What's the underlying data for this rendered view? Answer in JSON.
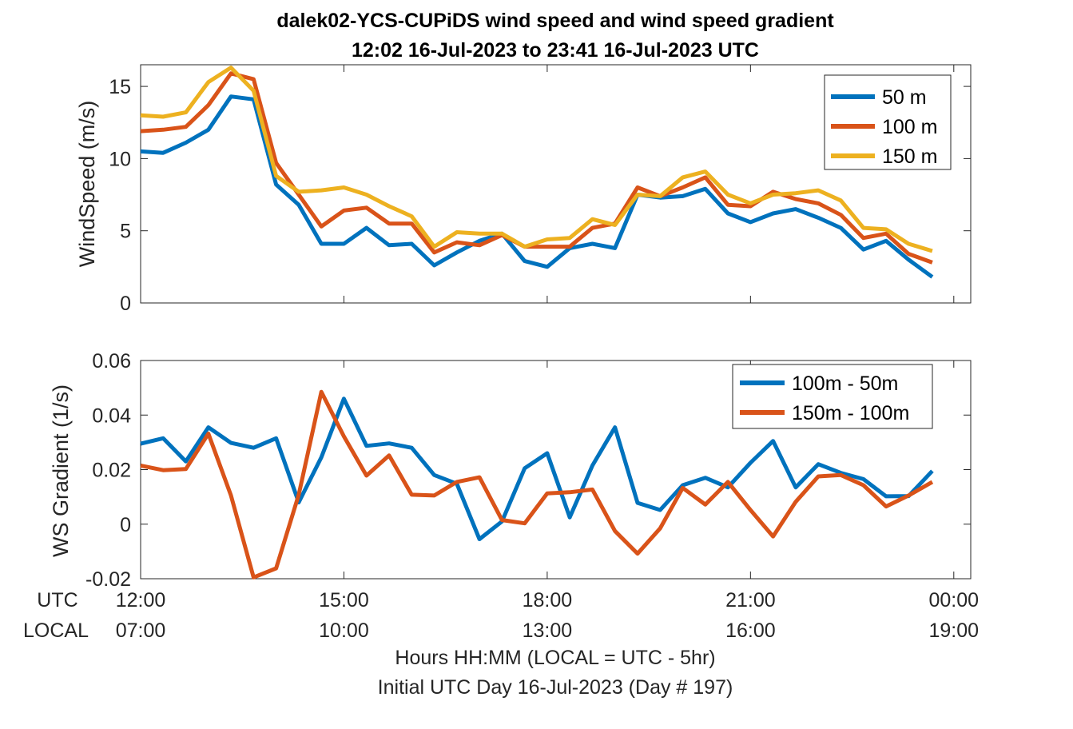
{
  "figure": {
    "title_line1": "dalek02-YCS-CUPiDS  wind speed and wind speed gradient",
    "title_line2": "12:02 16-Jul-2023 to 23:41 16-Jul-2023  UTC",
    "xlabel_line1": "Hours HH:MM  (LOCAL = UTC - 5hr)",
    "xlabel_line2": "Initial UTC Day 16-Jul-2023 (Day # 197)",
    "row_utc": "UTC",
    "row_local": "LOCAL",
    "utc_ticks": [
      "12:00",
      "15:00",
      "18:00",
      "21:00",
      "00:00"
    ],
    "local_ticks": [
      "07:00",
      "10:00",
      "13:00",
      "16:00",
      "19:00"
    ],
    "colors": {
      "blue": "#0072BD",
      "orange": "#D95319",
      "yellow": "#EDB120",
      "axis": "#262626"
    }
  },
  "chart_data": [
    {
      "type": "line",
      "ylabel": "WindSpeed (m/s)",
      "xlim": [
        12,
        24.25
      ],
      "ylim": [
        0,
        16.5
      ],
      "yticks": [
        0,
        5,
        10,
        15
      ],
      "ytick_labels": [
        "0",
        "5",
        "10",
        "15"
      ],
      "legend_position": "top-right",
      "x": [
        12.0,
        12.333,
        12.667,
        13.0,
        13.333,
        13.667,
        14.0,
        14.333,
        14.667,
        15.0,
        15.333,
        15.667,
        16.0,
        16.333,
        16.667,
        17.0,
        17.333,
        17.667,
        18.0,
        18.333,
        18.667,
        19.0,
        19.333,
        19.667,
        20.0,
        20.333,
        20.667,
        21.0,
        21.333,
        21.667,
        22.0,
        22.333,
        22.667,
        23.0,
        23.333,
        23.683
      ],
      "series": [
        {
          "name": "50 m",
          "color": "#0072BD",
          "values": [
            10.5,
            10.4,
            11.1,
            12.0,
            14.3,
            14.1,
            8.2,
            6.8,
            4.1,
            4.1,
            5.2,
            4.0,
            4.1,
            2.6,
            3.5,
            4.3,
            4.8,
            2.9,
            2.5,
            3.8,
            4.1,
            3.8,
            7.5,
            7.3,
            7.4,
            7.9,
            6.2,
            5.6,
            6.2,
            6.5,
            5.9,
            5.2,
            3.7,
            4.3,
            3.0,
            1.8
          ]
        },
        {
          "name": "100 m",
          "color": "#D95319",
          "values": [
            11.9,
            12.0,
            12.2,
            13.7,
            15.9,
            15.5,
            9.7,
            7.5,
            5.3,
            6.4,
            6.6,
            5.5,
            5.5,
            3.5,
            4.2,
            4.0,
            4.7,
            3.9,
            3.9,
            3.9,
            5.2,
            5.5,
            8.0,
            7.4,
            8.0,
            8.7,
            6.8,
            6.7,
            7.7,
            7.2,
            6.9,
            6.1,
            4.5,
            4.8,
            3.4,
            2.8
          ]
        },
        {
          "name": "150 m",
          "color": "#EDB120",
          "values": [
            13.0,
            12.9,
            13.2,
            15.3,
            16.3,
            14.7,
            8.8,
            7.7,
            7.8,
            8.0,
            7.5,
            6.7,
            6.0,
            3.9,
            4.9,
            4.8,
            4.8,
            3.9,
            4.4,
            4.5,
            5.8,
            5.4,
            7.5,
            7.4,
            8.7,
            9.1,
            7.5,
            6.9,
            7.5,
            7.6,
            7.8,
            7.1,
            5.2,
            5.1,
            4.1,
            3.6
          ]
        }
      ]
    },
    {
      "type": "line",
      "ylabel": "WS Gradient (1/s)",
      "xlim": [
        12,
        24.25
      ],
      "ylim": [
        -0.02,
        0.06
      ],
      "yticks": [
        -0.02,
        0,
        0.02,
        0.04,
        0.06
      ],
      "ytick_labels": [
        "-0.02",
        "0",
        "0.02",
        "0.04",
        "0.06"
      ],
      "legend_position": "top-right",
      "x": [
        12.0,
        12.333,
        12.667,
        13.0,
        13.333,
        13.667,
        14.0,
        14.333,
        14.667,
        15.0,
        15.333,
        15.667,
        16.0,
        16.333,
        16.667,
        17.0,
        17.333,
        17.667,
        18.0,
        18.333,
        18.667,
        19.0,
        19.333,
        19.667,
        20.0,
        20.333,
        20.667,
        21.0,
        21.333,
        21.667,
        22.0,
        22.333,
        22.667,
        23.0,
        23.333,
        23.683
      ],
      "series": [
        {
          "name": "100m - 50m",
          "color": "#0072BD",
          "values": [
            0.0295,
            0.0315,
            0.023,
            0.0355,
            0.0298,
            0.028,
            0.0315,
            0.008,
            0.0245,
            0.046,
            0.0287,
            0.0296,
            0.028,
            0.018,
            0.0148,
            -0.0055,
            0.001,
            0.0205,
            0.026,
            0.0025,
            0.0215,
            0.0355,
            0.0078,
            0.0052,
            0.0143,
            0.017,
            0.0135,
            0.0225,
            0.0305,
            0.0135,
            0.022,
            0.0188,
            0.0165,
            0.0102,
            0.0103,
            0.0195
          ]
        },
        {
          "name": "150m - 100m",
          "color": "#D95319",
          "values": [
            0.0215,
            0.0198,
            0.0202,
            0.0332,
            0.0105,
            -0.0195,
            -0.0162,
            0.0108,
            0.0485,
            0.0322,
            0.0178,
            0.0252,
            0.0108,
            0.0105,
            0.0155,
            0.0172,
            0.0015,
            0.0003,
            0.0113,
            0.0117,
            0.0127,
            -0.0025,
            -0.0108,
            -0.0015,
            0.0133,
            0.0072,
            0.0155,
            0.0052,
            -0.0045,
            0.0082,
            0.0175,
            0.018,
            0.0143,
            0.0065,
            0.0105,
            0.0155
          ]
        }
      ]
    }
  ]
}
